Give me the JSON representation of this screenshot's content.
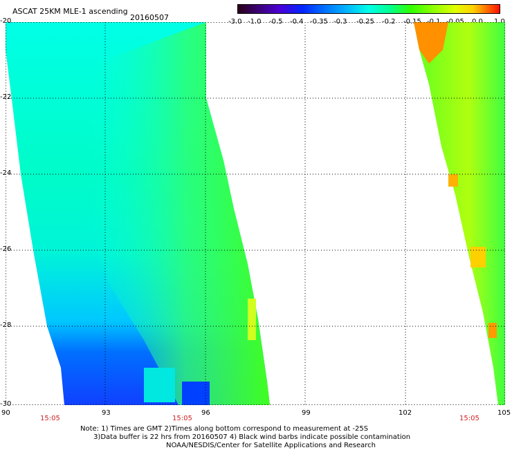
{
  "header": {
    "title": "ASCAT 25KM MLE-1 ascending",
    "date": "20160507"
  },
  "colorbar": {
    "labels": [
      "-3.0",
      "-1.0",
      "-0.5",
      "-0.4",
      "-0.35",
      "-0.3",
      "-0.25",
      "-0.2",
      "-0.15",
      "-0.1",
      "-0.05",
      "0.0",
      "1.0"
    ],
    "colors": [
      "#2a0018",
      "#3c0078",
      "#4a00d8",
      "#0028ff",
      "#0070ff",
      "#00b0ff",
      "#00ffe8",
      "#00ff90",
      "#30ff00",
      "#90ff00",
      "#e0ff00",
      "#ffd000",
      "#ff7000",
      "#ff1000"
    ]
  },
  "map": {
    "y_ticks": [
      "-20",
      "-22",
      "-24",
      "-26",
      "-28",
      "-30"
    ],
    "x_ticks": [
      "90",
      "93",
      "96",
      "99",
      "102",
      "105"
    ],
    "time_labels": [
      "15:05",
      "15:05",
      "15:05"
    ]
  },
  "notes": [
    "Note: 1) Times are GMT 2)Times along bottom correspond to measurement at -25S",
    "      3)Data buffer is 22 hrs from 20160507 4) Black wind barbs indicate possible contamination",
    "                                       NOAA/NESDIS/Center for Satellite Applications and Research"
  ]
}
